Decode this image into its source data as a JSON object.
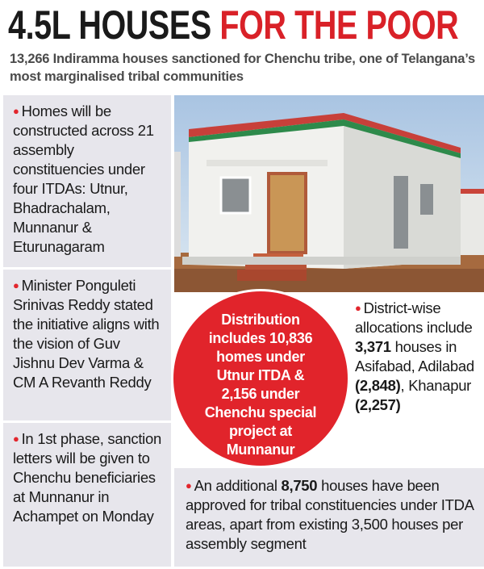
{
  "header": {
    "title_black": "4.5L HOUSES",
    "title_red": "FOR THE POOR",
    "subtitle": "13,266 Indiramma houses sanctioned for Chenchu tribe, one of Telangana’s most marginalised tribal communities"
  },
  "left_items": [
    "Homes will be constructed across 21 assembly constituencies under four ITDAs: Utnur, Bhadrachalam, Munnanur & Eturunagaram",
    "Minister Ponguleti Srinivas Reddy stated the initiative aligns with the vision of Guv Jishnu Dev Varma & CM A Revanth Reddy",
    "In 1st phase, sanction letters will be given to Chenchu beneficiaries at Munnanur in Achampet on Monday"
  ],
  "highlight": "Distribution includes 10,836 homes under Utnur ITDA & 2,156 under Chenchu special project at Munnanur",
  "district_allocations": [
    "District-wise allocations include ",
    "3,371",
    " houses in Asifabad, Adilabad ",
    "(2,848)",
    ", Khanapur ",
    "(2,257)"
  ],
  "additional": [
    "An additional ",
    "8,750",
    " houses have been approved for tribal constituencies under ITDA areas, apart from existing 3,500 houses per assembly segment"
  ]
}
